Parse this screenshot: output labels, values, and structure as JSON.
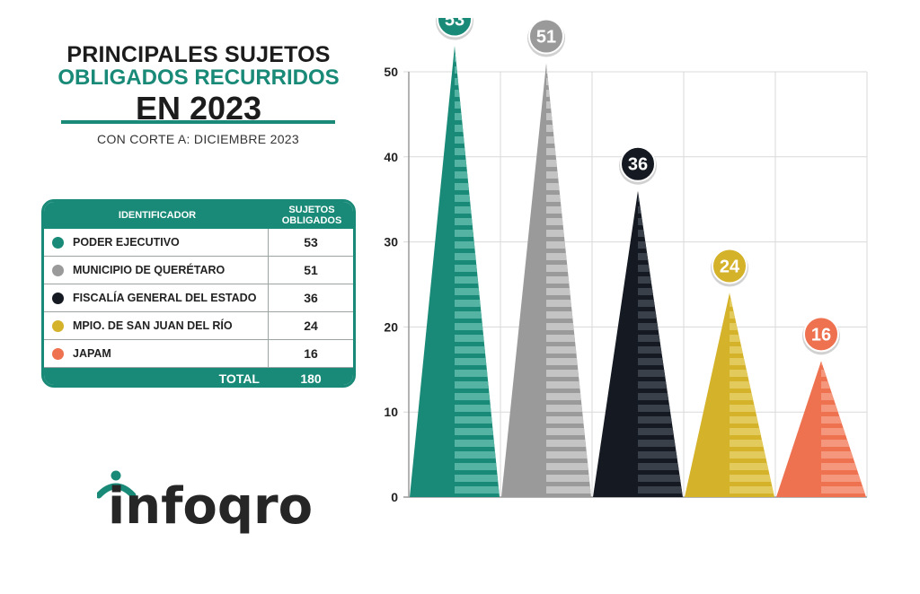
{
  "title": {
    "line1": "PRINCIPALES SUJETOS",
    "line2": "OBLIGADOS RECURRIDOS",
    "line3": "EN 2023",
    "subtitle": "CON CORTE A: DICIEMBRE 2023"
  },
  "table": {
    "header_id": "IDENTIFICADOR",
    "header_val": "SUJETOS OBLIGADOS",
    "rows": [
      {
        "label": "PODER EJECUTIVO",
        "value": "53",
        "color": "#1a8a78"
      },
      {
        "label": "MUNICIPIO DE QUERÉTARO",
        "value": "51",
        "color": "#9a9a9a"
      },
      {
        "label": "FISCALÍA GENERAL DEL ESTADO",
        "value": "36",
        "color": "#151a22"
      },
      {
        "label": "MPIO. DE SAN JUAN DEL RÍO",
        "value": "24",
        "color": "#d4b22a"
      },
      {
        "label": "JAPAM",
        "value": "16",
        "color": "#ee7150"
      }
    ],
    "total_label": "TOTAL",
    "total_value": "180"
  },
  "logo": {
    "text": "infoqro",
    "colors": {
      "accent": "#1a8a78",
      "text": "#262626"
    }
  },
  "chart_data": {
    "type": "bar",
    "categories": [
      "PODER EJECUTIVO",
      "MUNICIPIO DE QUERÉTARO",
      "FISCALÍA GENERAL DEL ESTADO",
      "MPIO. DE SAN JUAN DEL RÍO",
      "JAPAM"
    ],
    "values": [
      53,
      51,
      36,
      24,
      16
    ],
    "colors": [
      "#1a8a78",
      "#9a9a9a",
      "#151a22",
      "#d4b22a",
      "#ee7150"
    ],
    "light_colors": [
      "#55b3a3",
      "#c4c4c4",
      "#3a404a",
      "#e2cb5c",
      "#f4977c"
    ],
    "ylim": [
      0,
      50
    ],
    "yticks": [
      0,
      10,
      20,
      30,
      40,
      50
    ],
    "title": "",
    "xlabel": "",
    "ylabel": "",
    "grid": true
  }
}
